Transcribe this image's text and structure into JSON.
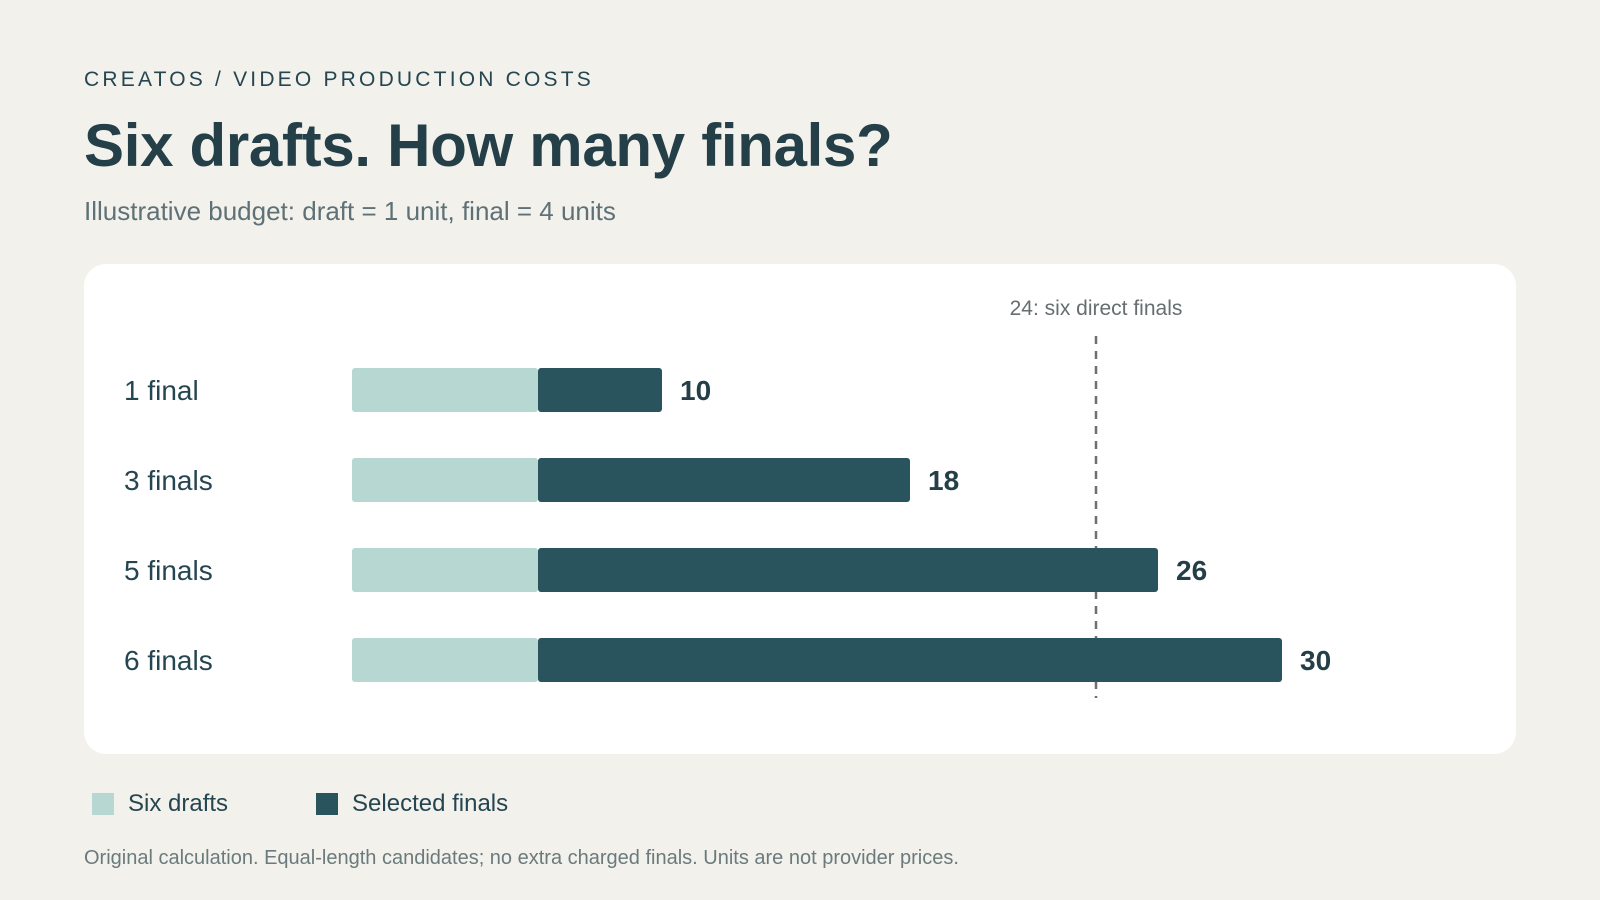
{
  "header": {
    "eyebrow": "CREATOS / VIDEO PRODUCTION COSTS",
    "title": "Six drafts. How many finals?",
    "subtitle": "Illustrative budget: draft = 1 unit, final = 4 units"
  },
  "colors": {
    "drafts": "#b7d8d2",
    "finals": "#29535d",
    "reference_line": "#6f6f6f",
    "text": "#254650"
  },
  "chart_data": {
    "type": "bar",
    "orientation": "horizontal",
    "stacked": true,
    "categories": [
      "1 final",
      "3 finals",
      "5 finals",
      "6 finals"
    ],
    "series": [
      {
        "name": "Six drafts",
        "values": [
          6,
          6,
          6,
          6
        ]
      },
      {
        "name": "Selected finals",
        "values": [
          4,
          12,
          20,
          24
        ]
      }
    ],
    "totals": [
      "10",
      "18",
      "26",
      "30"
    ],
    "reference_line": {
      "value": 24,
      "label": "24: six direct finals"
    },
    "xlim": [
      0,
      30
    ],
    "grid": false,
    "legend_position": "bottom-left"
  },
  "legend": {
    "drafts_label": "Six drafts",
    "finals_label": "Selected finals"
  },
  "footnote": "Original calculation. Equal-length candidates; no extra charged finals. Units are not provider prices."
}
